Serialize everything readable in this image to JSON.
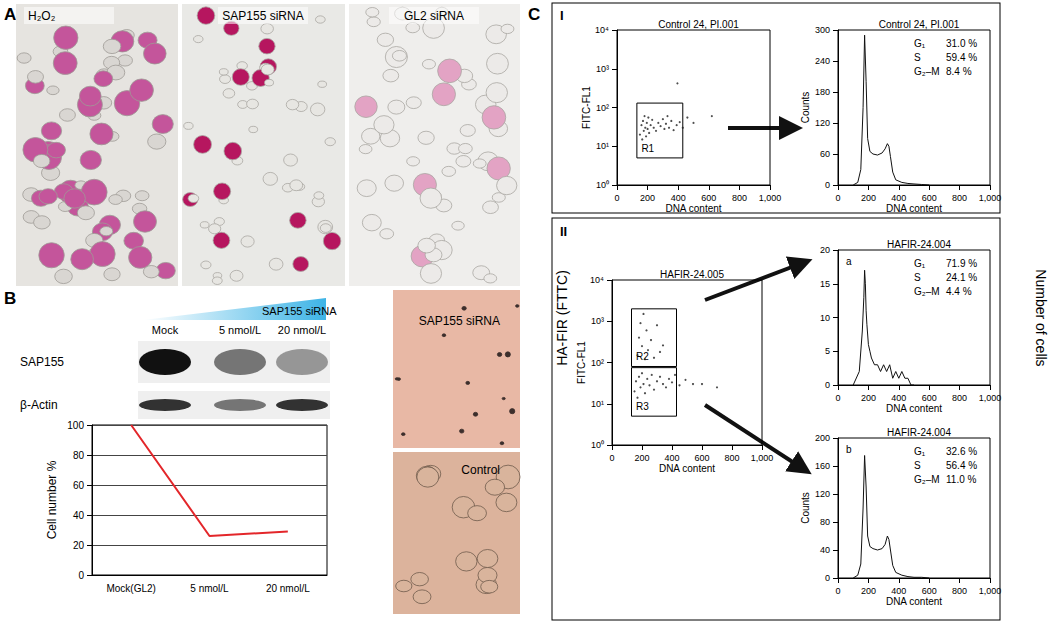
{
  "panel_labels": [
    "A",
    "B",
    "C"
  ],
  "A": {
    "images": [
      "H₂O₂",
      "SAP155 siRNA",
      "GL2 siRNA"
    ]
  },
  "B": {
    "treatment": "SAP155 siRNA",
    "lanes": [
      "Mock",
      "5 nmol/L",
      "20 nmol/L"
    ],
    "blot_rows": [
      {
        "label": "SAP155",
        "intensity": [
          1.0,
          0.55,
          0.4
        ]
      },
      {
        "label": "β-Actin",
        "intensity": [
          0.85,
          0.55,
          0.85
        ]
      }
    ],
    "images": [
      "SAP155 siRNA",
      "Control"
    ]
  },
  "C": {
    "sub_panels": [
      "I",
      "II"
    ],
    "y_label": "HA-FIR (FTTC)",
    "right_label": "Number of cells"
  },
  "chart_data": [
    {
      "type": "line",
      "y_label": "Cell number %",
      "categories": [
        "Mock(GL2)",
        "5 nmol/L",
        "20 nmol/L"
      ],
      "values": [
        100,
        26,
        29
      ],
      "color": "#e3262a",
      "marker": "none",
      "ylim": [
        0,
        100
      ],
      "yticks": [
        0,
        20,
        40,
        60,
        80,
        100
      ],
      "grid": true
    },
    {
      "type": "scatter",
      "title": "Control 24, PI.001",
      "x_label": "DNA content",
      "y_label": "FITC-FL1",
      "log": "y",
      "color": "#222222",
      "xlim": [
        0,
        1000
      ],
      "xticks": [
        0,
        200,
        400,
        600,
        800,
        {
          "value": 1000,
          "label": "1,000"
        }
      ],
      "ylim": [
        1,
        10000
      ],
      "yticks": [
        {
          "value": 1,
          "label": "10⁰"
        },
        {
          "value": 10,
          "label": "10¹"
        },
        {
          "value": 100,
          "label": "10²"
        },
        {
          "value": 1000,
          "label": "10³"
        },
        {
          "value": 10000,
          "label": "10⁴"
        }
      ],
      "points": [
        [
          150,
          20
        ],
        [
          160,
          35
        ],
        [
          165,
          15
        ],
        [
          170,
          45
        ],
        [
          175,
          25
        ],
        [
          180,
          60
        ],
        [
          185,
          30
        ],
        [
          190,
          18
        ],
        [
          195,
          40
        ],
        [
          200,
          28
        ],
        [
          205,
          55
        ],
        [
          210,
          22
        ],
        [
          220,
          35
        ],
        [
          230,
          48
        ],
        [
          240,
          30
        ],
        [
          255,
          25
        ],
        [
          270,
          40
        ],
        [
          285,
          33
        ],
        [
          300,
          50
        ],
        [
          310,
          28
        ],
        [
          320,
          38
        ],
        [
          330,
          60
        ],
        [
          340,
          30
        ],
        [
          355,
          45
        ],
        [
          370,
          26
        ],
        [
          390,
          35
        ],
        [
          410,
          42
        ],
        [
          430,
          30
        ],
        [
          460,
          55
        ],
        [
          500,
          40
        ],
        [
          620,
          60
        ],
        [
          395,
          420
        ]
      ],
      "gates": [
        {
          "label": "R1",
          "x": [
            130,
            430
          ],
          "y": [
            5,
            130
          ]
        }
      ]
    },
    {
      "type": "line",
      "title": "Control 24, PI.001",
      "x_label": "DNA content",
      "y_label": "Counts",
      "color": "#111111",
      "xlim": [
        0,
        1000
      ],
      "xticks": [
        0,
        200,
        400,
        600,
        800,
        {
          "value": 1000,
          "label": "1,000"
        }
      ],
      "ylim": [
        0,
        300
      ],
      "yticks": [
        0,
        60,
        120,
        180,
        240,
        300
      ],
      "x": [
        100,
        130,
        150,
        165,
        175,
        185,
        195,
        210,
        230,
        260,
        290,
        310,
        325,
        335,
        345,
        360,
        380,
        420,
        460,
        500,
        550,
        600
      ],
      "values": [
        0,
        5,
        30,
        150,
        290,
        200,
        90,
        65,
        60,
        58,
        62,
        70,
        80,
        75,
        55,
        25,
        10,
        5,
        3,
        2,
        1,
        0
      ],
      "phases": [
        [
          "G₁",
          "31.0 %"
        ],
        [
          "S",
          "59.4 %"
        ],
        [
          "G₂–M",
          "8.4 %"
        ]
      ]
    },
    {
      "type": "scatter",
      "title": "HAFIR-24.005",
      "x_label": "DNA content",
      "y_label": "FITC-FL1",
      "log": "y",
      "color": "#222222",
      "xlim": [
        0,
        1000
      ],
      "xticks": [
        0,
        200,
        400,
        600,
        800,
        {
          "value": 1000,
          "label": "1,000"
        }
      ],
      "ylim": [
        1,
        10000
      ],
      "yticks": [
        {
          "value": 1,
          "label": "10⁰"
        },
        {
          "value": 10,
          "label": "10¹"
        },
        {
          "value": 100,
          "label": "10²"
        },
        {
          "value": 1000,
          "label": "10³"
        },
        {
          "value": 10000,
          "label": "10⁴"
        }
      ],
      "points": [
        [
          170,
          150
        ],
        [
          180,
          400
        ],
        [
          190,
          900
        ],
        [
          200,
          250
        ],
        [
          210,
          1500
        ],
        [
          220,
          120
        ],
        [
          230,
          600
        ],
        [
          240,
          200
        ],
        [
          260,
          350
        ],
        [
          280,
          130
        ],
        [
          300,
          800
        ],
        [
          320,
          180
        ],
        [
          340,
          260
        ],
        [
          150,
          20
        ],
        [
          160,
          35
        ],
        [
          170,
          14
        ],
        [
          180,
          45
        ],
        [
          190,
          25
        ],
        [
          200,
          55
        ],
        [
          210,
          30
        ],
        [
          220,
          18
        ],
        [
          235,
          40
        ],
        [
          250,
          28
        ],
        [
          265,
          50
        ],
        [
          280,
          22
        ],
        [
          300,
          35
        ],
        [
          320,
          45
        ],
        [
          340,
          30
        ],
        [
          360,
          25
        ],
        [
          380,
          40
        ],
        [
          400,
          33
        ],
        [
          420,
          50
        ],
        [
          450,
          28
        ],
        [
          490,
          38
        ],
        [
          540,
          30
        ],
        [
          600,
          30
        ],
        [
          700,
          25
        ]
      ],
      "gates": [
        {
          "label": "R2",
          "x": [
            130,
            430
          ],
          "y": [
            80,
            2000
          ]
        },
        {
          "label": "R3",
          "x": [
            130,
            430
          ],
          "y": [
            5,
            75
          ]
        }
      ]
    },
    {
      "type": "line",
      "title": "HAFIR-24.004",
      "panel": "a",
      "x_label": "DNA content",
      "color": "#111111",
      "xlim": [
        0,
        1000
      ],
      "xticks": [
        0,
        200,
        400,
        600,
        800,
        {
          "value": 1000,
          "label": "1,000"
        }
      ],
      "ylim": [
        0,
        20
      ],
      "yticks": [
        0,
        5,
        10,
        15,
        20
      ],
      "x": [
        100,
        140,
        160,
        170,
        175,
        180,
        185,
        190,
        200,
        210,
        220,
        240,
        260,
        280,
        300,
        320,
        340,
        360,
        380,
        400,
        420,
        440,
        460,
        480,
        500
      ],
      "values": [
        0,
        2,
        8,
        13,
        17,
        15,
        11,
        9,
        6,
        5,
        4,
        3,
        3,
        2,
        3,
        2,
        3,
        1,
        2,
        1,
        2,
        1,
        1,
        0,
        0
      ],
      "phases": [
        [
          "G₁",
          "71.9 %"
        ],
        [
          "S",
          "24.1 %"
        ],
        [
          "G₂–M",
          "4.4 %"
        ]
      ]
    },
    {
      "type": "line",
      "title": "HAFIR-24.004",
      "panel": "b",
      "x_label": "DNA content",
      "y_label": "Counts",
      "color": "#111111",
      "xlim": [
        0,
        1000
      ],
      "xticks": [
        0,
        200,
        400,
        600,
        800,
        {
          "value": 1000,
          "label": "1,000"
        }
      ],
      "ylim": [
        0,
        200
      ],
      "yticks": [
        0,
        40,
        80,
        120,
        160,
        200
      ],
      "x": [
        100,
        130,
        150,
        165,
        175,
        185,
        195,
        210,
        230,
        260,
        290,
        310,
        325,
        335,
        345,
        360,
        380,
        420,
        460,
        500,
        550,
        600
      ],
      "values": [
        0,
        4,
        20,
        100,
        175,
        130,
        60,
        45,
        42,
        40,
        42,
        48,
        60,
        55,
        40,
        18,
        8,
        4,
        2,
        1,
        1,
        0
      ],
      "phases": [
        [
          "G₁",
          "32.6 %"
        ],
        [
          "S",
          "56.4 %"
        ],
        [
          "G₂–M",
          "11.0 %"
        ]
      ]
    }
  ]
}
